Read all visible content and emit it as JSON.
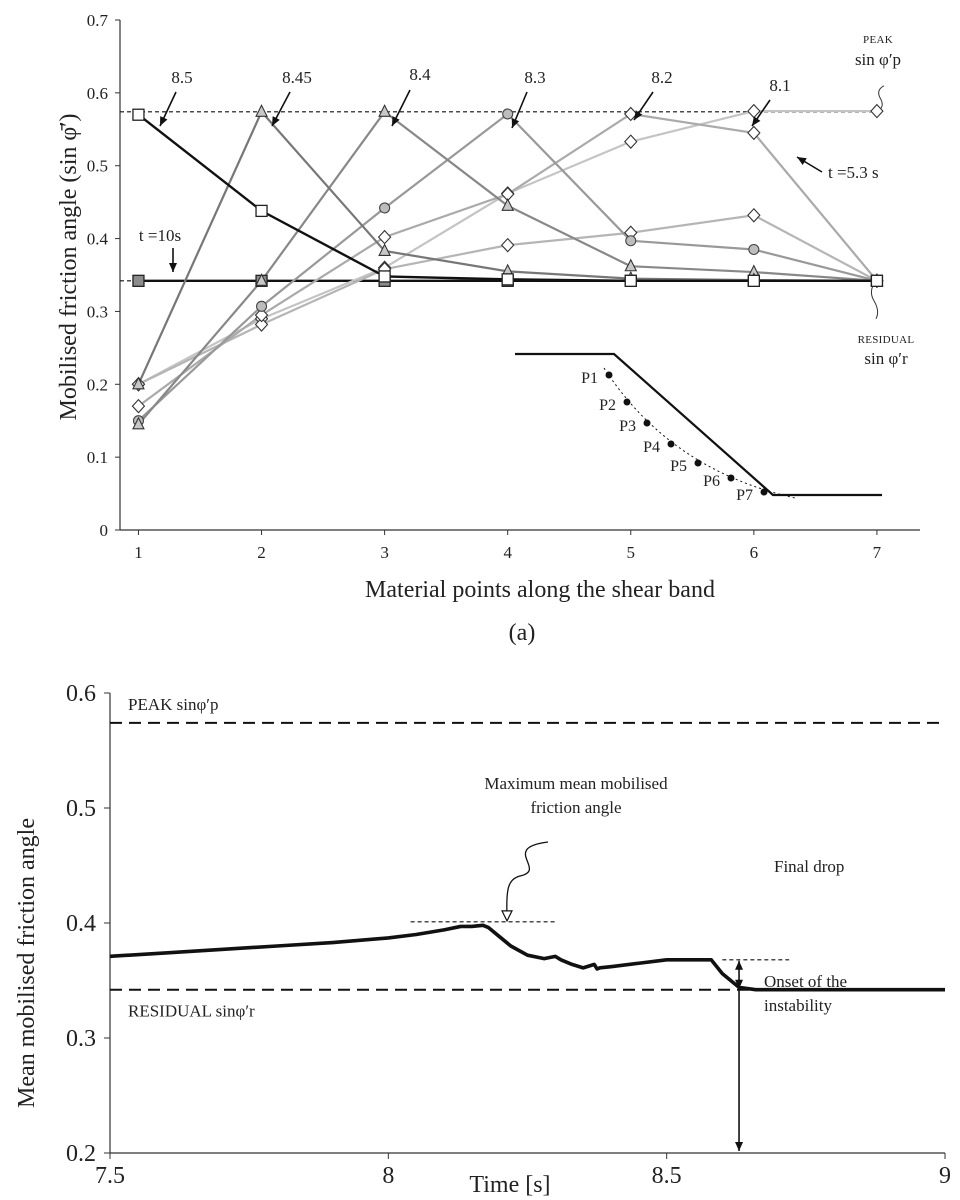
{
  "caption_a": "(a)",
  "chart_data": [
    {
      "type": "line",
      "xlabel": "Material points along the shear band",
      "ylabel": "Mobilised friction angle (sin φ̄′)",
      "xlim": [
        0.85,
        7.35
      ],
      "ylim": [
        0,
        0.7
      ],
      "xticks": [
        "1",
        "2",
        "3",
        "4",
        "5",
        "6",
        "7"
      ],
      "yticks": [
        "0",
        "0.1",
        "0.2",
        "0.3",
        "0.4",
        "0.5",
        "0.6",
        "0.7"
      ],
      "x": [
        1,
        2,
        3,
        4,
        5,
        6,
        7
      ],
      "reference_lines": [
        {
          "label_top": "PEAK",
          "label_bottom": "sin φ′p",
          "value": 0.574
        },
        {
          "label_top": "RESIDUAL",
          "label_bottom": "sin φ′r",
          "value": 0.342
        }
      ],
      "series": [
        {
          "time_label": "8.5",
          "marker": "square-open",
          "color": "#111111",
          "values": [
            0.57,
            0.438,
            0.348,
            0.344,
            0.342,
            0.342,
            0.342
          ]
        },
        {
          "time_label": "8.45",
          "marker": "triangle",
          "color": "#777777",
          "values": [
            0.2,
            0.574,
            0.383,
            0.355,
            0.345,
            0.343,
            0.342
          ]
        },
        {
          "time_label": "8.4",
          "marker": "triangle",
          "color": "#888888",
          "values": [
            0.145,
            0.342,
            0.574,
            0.445,
            0.362,
            0.354,
            0.342
          ]
        },
        {
          "time_label": "8.3",
          "marker": "circle",
          "color": "#999999",
          "values": [
            0.15,
            0.307,
            0.442,
            0.571,
            0.397,
            0.385,
            0.342
          ]
        },
        {
          "time_label": "8.2",
          "marker": "diamond",
          "color": "#aaaaaa",
          "values": [
            0.17,
            0.295,
            0.402,
            0.461,
            0.571,
            0.545,
            0.342
          ]
        },
        {
          "time_label": "8.1",
          "marker": "diamond",
          "color": "#b5b5b5",
          "values": [
            0.2,
            0.282,
            0.358,
            0.391,
            0.408,
            0.432,
            0.342
          ]
        },
        {
          "time_label": "t =5.3 s",
          "marker": "diamond",
          "color": "#c4c4c4",
          "values": [
            0.2,
            0.29,
            0.36,
            0.462,
            0.533,
            0.575,
            0.575
          ]
        },
        {
          "time_label": "t =10s",
          "marker": "square-filled",
          "color": "#111111",
          "values": [
            0.342,
            0.342,
            0.342,
            0.342,
            0.342,
            0.342,
            0.342
          ]
        }
      ],
      "inset_points": [
        "P1",
        "P2",
        "P3",
        "P4",
        "P5",
        "P6",
        "P7"
      ]
    },
    {
      "type": "line",
      "xlabel": "Time [s]",
      "ylabel": "Mean mobilised friction angle",
      "xlim": [
        7.5,
        9
      ],
      "ylim": [
        0.2,
        0.6
      ],
      "xticks": [
        "7.5",
        "8",
        "8.5",
        "9"
      ],
      "yticks": [
        "0.2",
        "0.3",
        "0.4",
        "0.5",
        "0.6"
      ],
      "reference_lines": [
        {
          "label": "PEAK sinφ′p",
          "value": 0.574
        },
        {
          "label": "RESIDUAL sinφ′r",
          "value": 0.342
        }
      ],
      "series": [
        {
          "x": [
            7.5,
            7.6,
            7.7,
            7.8,
            7.9,
            8.0,
            8.05,
            8.1,
            8.13,
            8.15,
            8.17,
            8.18,
            8.2,
            8.22,
            8.25,
            8.28,
            8.3,
            8.31,
            8.33,
            8.35,
            8.37,
            8.375,
            8.38,
            8.4,
            8.45,
            8.5,
            8.55,
            8.58,
            8.6,
            8.63,
            8.66,
            8.7,
            8.8,
            8.9,
            9.0
          ],
          "y": [
            0.371,
            0.374,
            0.377,
            0.38,
            0.383,
            0.387,
            0.39,
            0.394,
            0.397,
            0.397,
            0.398,
            0.396,
            0.388,
            0.38,
            0.372,
            0.369,
            0.371,
            0.368,
            0.364,
            0.361,
            0.364,
            0.36,
            0.361,
            0.362,
            0.365,
            0.368,
            0.368,
            0.368,
            0.356,
            0.344,
            0.342,
            0.342,
            0.342,
            0.342,
            0.342
          ]
        }
      ],
      "annotations": [
        {
          "text_lines": [
            "Maximum mean mobilised",
            "friction angle"
          ],
          "x": 8.2,
          "y": 0.401
        },
        {
          "text_lines": [
            "Final drop"
          ],
          "x": 8.63,
          "y": 0.355
        },
        {
          "text_lines": [
            "Onset of the",
            "instability"
          ],
          "x": 8.63,
          "y": 0.2
        }
      ]
    }
  ]
}
